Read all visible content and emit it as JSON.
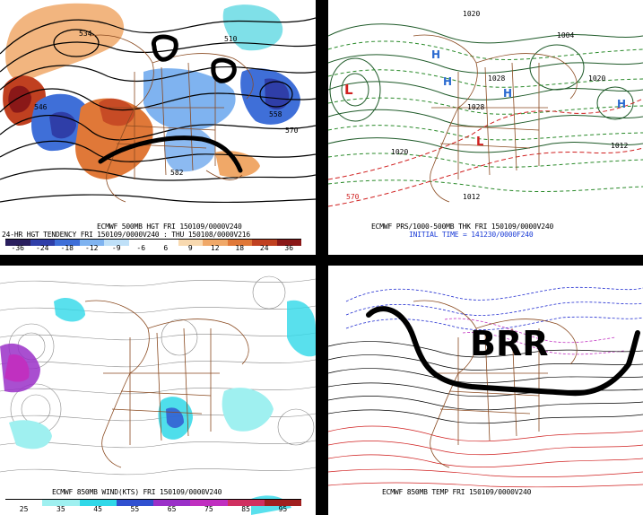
{
  "panels": {
    "p1": {
      "caption1": "ECMWF 500MB HGT FRI 150109/0000V240",
      "caption2": "24-HR HGT TENDENCY FRI 150109/0000V240 : THU 150108/0000V216",
      "scale": {
        "colors": [
          "#2a1f5e",
          "#2f3ea8",
          "#3f6fd8",
          "#7fb3f0",
          "#bfe0f8",
          "#ffffff",
          "#ffffff",
          "#f8d9b0",
          "#f0a868",
          "#e07838",
          "#c04020",
          "#8a1818"
        ],
        "ticks": [
          "-36",
          "-24",
          "-18",
          "-12",
          "-9",
          "-6",
          "6",
          "9",
          "12",
          "18",
          "24",
          "36"
        ]
      },
      "contour_labels": [
        "534",
        "510",
        "570",
        "558",
        "582",
        "546"
      ]
    },
    "p2": {
      "caption1": "ECMWF PRS/1000-500MB THK FRI 150109/0000V240",
      "caption2": "INITIAL TIME = 141230/0000F240",
      "labels": [
        "L",
        "L",
        "H",
        "H",
        "H",
        "H",
        "1020",
        "1012",
        "1020",
        "1028",
        "1012",
        "1004",
        "570",
        "1020",
        "1028"
      ]
    },
    "p3": {
      "caption1": "ECMWF 850MB WIND(KTS) FRI 150109/0000V240",
      "scale": {
        "colors": [
          "#ffffff",
          "#9ff0f0",
          "#30d8e8",
          "#3050d0",
          "#9a30c8",
          "#c030c0",
          "#d03060",
          "#a02020"
        ],
        "ticks": [
          "25",
          "35",
          "45",
          "55",
          "65",
          "75",
          "85",
          "95"
        ]
      }
    },
    "p4": {
      "caption1": "ECMWF 850MB TEMP FRI 150109/0000V240",
      "annotation": "BRR"
    }
  }
}
